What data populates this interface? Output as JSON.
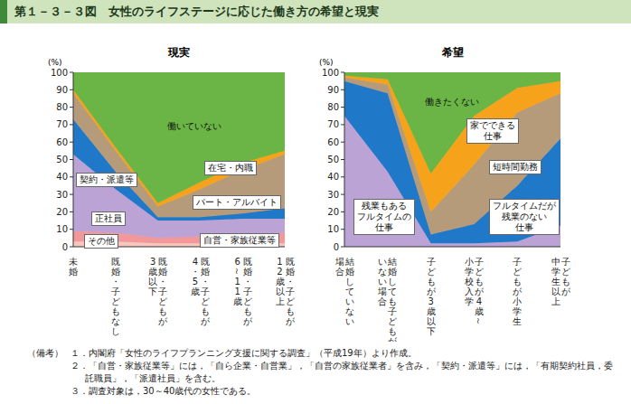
{
  "title": "第１－３－３図　女性のライフステージに応じた働き方の希望と現実",
  "chart_data": [
    {
      "type": "area",
      "title": "現実",
      "ylabel": "(%)",
      "stacked": true,
      "grid": false,
      "categories": [
        "未婚",
        "既婚・子どもなし",
        "既婚・子どもが\n3歳以下",
        "既婚・子どもが\n4・5歳",
        "既婚・子どもが\n6～11歳",
        "既婚・子どもが\n12歳以上"
      ],
      "ylim": [
        0,
        100
      ],
      "yticks": [
        0,
        10,
        20,
        30,
        40,
        50,
        60,
        70,
        80,
        90,
        100
      ],
      "series": [
        {
          "name": "その他",
          "color": "#f8c6bd",
          "values": [
            3,
            3,
            2,
            2,
            2,
            2
          ]
        },
        {
          "name": "自営・家族従業等",
          "color": "#f2989a",
          "values": [
            6,
            5,
            3,
            4,
            5,
            6
          ]
        },
        {
          "name": "正社員",
          "color": "#bba3d6",
          "values": [
            44,
            25,
            10,
            9,
            9,
            8
          ]
        },
        {
          "name": "契約・派遣等",
          "color": "#1f78c8",
          "values": [
            20,
            10,
            2,
            2,
            3,
            6
          ]
        },
        {
          "name": "パート・アルバイト",
          "color": "#b59b7a",
          "values": [
            15,
            12,
            6,
            16,
            25,
            31
          ]
        },
        {
          "name": "在宅・内職",
          "color": "#f7a21b",
          "values": [
            2,
            2,
            2,
            4,
            4,
            2
          ]
        },
        {
          "name": "働いていない",
          "color": "#6ab545",
          "values": [
            10,
            43,
            75,
            63,
            52,
            45
          ]
        }
      ]
    },
    {
      "type": "area",
      "title": "希望",
      "ylabel": "(%)",
      "stacked": true,
      "grid": false,
      "categories": [
        "結婚していない\n場合",
        "結婚しても子どもが\nいない場合",
        "子どもが3歳以下",
        "子どもが4歳～\n小学校入学",
        "子どもが小学生",
        "子どもが\n中学生以上"
      ],
      "ylim": [
        0,
        100
      ],
      "yticks": [
        0,
        10,
        20,
        30,
        40,
        50,
        60,
        70,
        80,
        90,
        100
      ],
      "series": [
        {
          "name": "残業もある\nフルタイムの\n仕事",
          "color": "#bba3d6",
          "values": [
            75,
            43,
            2,
            2,
            3,
            12
          ]
        },
        {
          "name": "フルタイムだが\n残業のない\n仕事",
          "color": "#1f78c8",
          "values": [
            20,
            45,
            5,
            11,
            32,
            50
          ]
        },
        {
          "name": "短時間勤務",
          "color": "#b59b7a",
          "values": [
            2,
            5,
            13,
            34,
            42,
            26
          ]
        },
        {
          "name": "家でできる\n仕事",
          "color": "#f7a21b",
          "values": [
            1,
            3,
            22,
            28,
            14,
            7
          ]
        },
        {
          "name": "働きたくない",
          "color": "#6ab545",
          "values": [
            2,
            4,
            58,
            25,
            9,
            5
          ]
        }
      ]
    }
  ],
  "notes": {
    "label": "（備考）",
    "items": [
      "１．内閣府「女性のライフプランニング支援に関する調査」（平成19年）より作成。",
      "２．「自営・家族従業等」には，「自ら企業・自営業」，「自営の家族従業者」を含み，「契約・派遣等」には，「有期契約社員，委託職員」，「派遣社員」を含む。",
      "３．調査対象は，30～40歳代の女性である。"
    ]
  }
}
